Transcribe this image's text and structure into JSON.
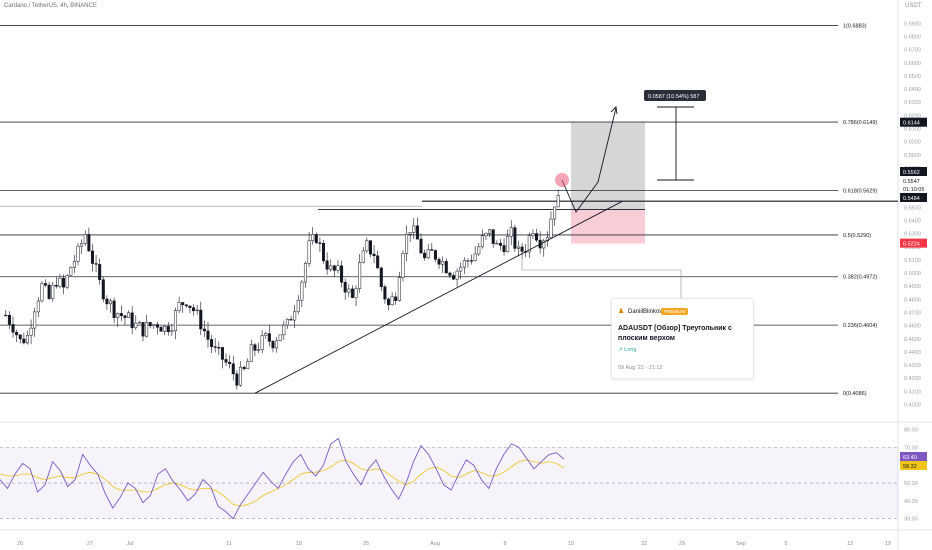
{
  "header": {
    "symbol_line": "Cardano / TetherUS, 4h, BINANCE",
    "currency": "USDT"
  },
  "chart_data": [
    {
      "type": "candlestick",
      "title": "Cardano / TetherUS, 4h, BINANCE",
      "ylim": [
        0.392,
        0.7032
      ],
      "y_ticks": [
        "0.6900",
        "0.6800",
        "0.6700",
        "0.6600",
        "0.6500",
        "0.6400",
        "0.6300",
        "0.6200",
        "0.6100",
        "0.6000",
        "0.5900",
        "0.5800",
        "0.5700",
        "0.5600",
        "0.5500",
        "0.5400",
        "0.5300",
        "0.5200",
        "0.5100",
        "0.5000",
        "0.4900",
        "0.4800",
        "0.4700",
        "0.4600",
        "0.4500",
        "0.4400",
        "0.4300",
        "0.4200",
        "0.4100",
        "0.4000"
      ],
      "x_tick_labels": [
        "20",
        "27",
        "Jul",
        "11",
        "18",
        "25",
        "Aug",
        "8",
        "15",
        "22",
        "29",
        "Sep",
        "5",
        "12",
        "19"
      ],
      "price_series_close_estimated": [
        0.468,
        0.46,
        0.448,
        0.452,
        0.475,
        0.49,
        0.48,
        0.495,
        0.488,
        0.505,
        0.515,
        0.53,
        0.51,
        0.492,
        0.48,
        0.472,
        0.468,
        0.465,
        0.46,
        0.457,
        0.46,
        0.462,
        0.458,
        0.462,
        0.475,
        0.48,
        0.472,
        0.462,
        0.45,
        0.44,
        0.435,
        0.428,
        0.42,
        0.425,
        0.44,
        0.445,
        0.45,
        0.448,
        0.455,
        0.46,
        0.475,
        0.495,
        0.52,
        0.528,
        0.512,
        0.502,
        0.5,
        0.49,
        0.48,
        0.505,
        0.52,
        0.515,
        0.49,
        0.475,
        0.485,
        0.52,
        0.535,
        0.525,
        0.51,
        0.515,
        0.512,
        0.505,
        0.5,
        0.505,
        0.51,
        0.515,
        0.525,
        0.53,
        0.52,
        0.522,
        0.529,
        0.515,
        0.52,
        0.535,
        0.525,
        0.53,
        0.5547
      ],
      "price_labels": [
        {
          "text": "0.6144",
          "type": "target"
        },
        {
          "text": "0.5562",
          "type": "level"
        },
        {
          "text": "0.5547",
          "type": "last"
        },
        {
          "text": "01:10:05",
          "type": "countdown"
        },
        {
          "text": "0.5484",
          "type": "level"
        },
        {
          "text": "0.5224",
          "type": "stop"
        }
      ],
      "fibonacci_levels": [
        {
          "label": "1(0.6883)",
          "value": 0.6883
        },
        {
          "label": "0.786(0.6149)",
          "value": 0.6149
        },
        {
          "label": "0.618(0.5629)",
          "value": 0.5629
        },
        {
          "label": "0.5(0.5290)",
          "value": 0.529
        },
        {
          "label": "0.382(0.4972)",
          "value": 0.4972
        },
        {
          "label": "0.236(0.4604)",
          "value": 0.4604
        },
        {
          "label": "0(0.4086)",
          "value": 0.4086
        }
      ],
      "annotations": {
        "measure_label": "0.0587 (10.54%) 587",
        "long_position": {
          "entry": 0.5484,
          "target": 0.6144,
          "stop": 0.5224
        },
        "trendline": {
          "from": 0.4086,
          "to": 0.5484
        },
        "flat_top": 0.5562
      },
      "colors": {
        "up": "#131722",
        "down": "#131722",
        "target_zone": "#cfcfcf",
        "stop_zone": "#f7c8d2",
        "highlight_circle": "#ef5b7a",
        "stop_label": "#f23645",
        "rsi_line": "#7e57c2",
        "rsi_ma": "#f0c419"
      }
    },
    {
      "type": "line",
      "title": "RSI",
      "ylim": [
        27,
        82
      ],
      "y_ticks": [
        "80.00",
        "70.00",
        "60.00",
        "50.00",
        "40.00",
        "30.00"
      ],
      "bands": [
        70,
        50,
        30
      ],
      "value_labels": [
        "63.40",
        "58.32"
      ],
      "series": [
        {
          "values": [
            52,
            47,
            55,
            61,
            58,
            45,
            49,
            62,
            57,
            48,
            52,
            66,
            60,
            55,
            44,
            36,
            42,
            50,
            47,
            39,
            43,
            55,
            58,
            51,
            46,
            40,
            44,
            52,
            48,
            37,
            34,
            30,
            38,
            44,
            50,
            56,
            51,
            47,
            55,
            62,
            66,
            58,
            54,
            60,
            72,
            75,
            62,
            55,
            49,
            58,
            63,
            54,
            47,
            41,
            50,
            62,
            71,
            66,
            58,
            49,
            46,
            55,
            63,
            60,
            52,
            47,
            58,
            66,
            72,
            70,
            64,
            58,
            62,
            66,
            67,
            63.4
          ]
        },
        {
          "values": [
            55,
            54,
            54,
            55,
            55,
            53,
            52,
            53,
            54,
            53,
            53,
            55,
            56,
            55,
            52,
            48,
            46,
            46,
            46,
            45,
            45,
            47,
            49,
            50,
            49,
            47,
            46,
            47,
            47,
            45,
            42,
            38,
            37,
            38,
            40,
            43,
            45,
            47,
            49,
            52,
            55,
            56,
            56,
            57,
            59,
            62,
            63,
            61,
            58,
            57,
            58,
            57,
            54,
            51,
            49,
            51,
            55,
            58,
            59,
            57,
            54,
            53,
            55,
            57,
            56,
            54,
            54,
            56,
            59,
            62,
            63,
            62,
            61,
            62,
            61,
            58.32
          ]
        }
      ]
    }
  ],
  "idea_card": {
    "author": "DaniilBlinkov",
    "badge": "PREMIUM",
    "title": "ADAUSDT [Обзор] Треугольник с плоским верхом",
    "tag": "Long",
    "date": "09 Aug '22 · 21:12"
  }
}
